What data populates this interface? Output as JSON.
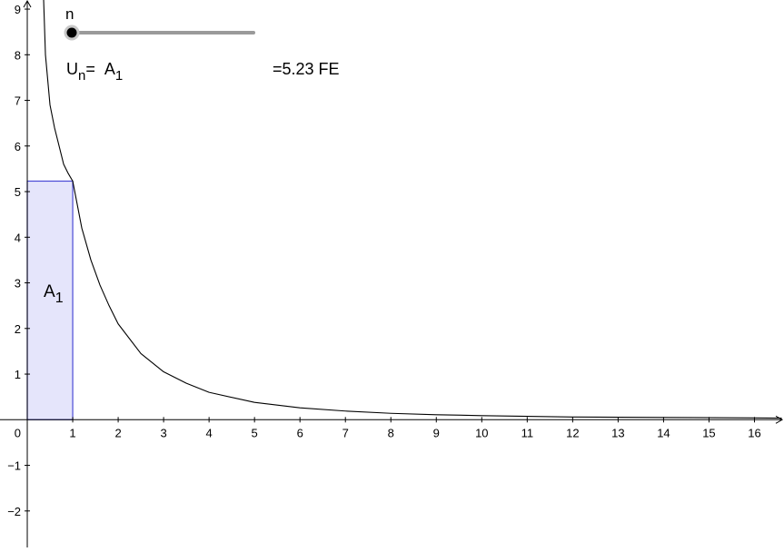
{
  "slider": {
    "name": "n",
    "min": 1,
    "max": 20,
    "value": 1,
    "color": "#9a9a9a",
    "knob_color": "#000000"
  },
  "formula": {
    "prefix": "U",
    "sub_n": "n",
    "equals": "=",
    "term": "A",
    "term_sub": "1"
  },
  "result": {
    "text": "=5.23 FE"
  },
  "rect_label": {
    "text": "A",
    "sub": "1"
  },
  "chart_data": {
    "type": "line",
    "function": "f(x) = 1/x^k",
    "series": [
      {
        "x": [
          0.36,
          0.4,
          0.5,
          0.6,
          0.7,
          0.8,
          0.9,
          1.0,
          1.2,
          1.4,
          1.6,
          1.8,
          2.0,
          2.5,
          3.0,
          3.5,
          4.0,
          5.0,
          6.0,
          7.0,
          8.0,
          9.0,
          10.0,
          12.0,
          14.0,
          16.0,
          16.6
        ],
        "y": [
          9.2,
          8.0,
          6.9,
          6.4,
          6.0,
          5.6,
          5.4,
          5.23,
          4.2,
          3.5,
          2.95,
          2.5,
          2.1,
          1.45,
          1.05,
          0.8,
          0.6,
          0.38,
          0.26,
          0.19,
          0.14,
          0.11,
          0.09,
          0.06,
          0.05,
          0.04,
          0.035
        ]
      }
    ],
    "rectangles": [
      {
        "x0": 0,
        "x1": 1,
        "height": 5.23,
        "fill": "#e5e5fb",
        "stroke": "#4a4ad6"
      }
    ],
    "xlim": [
      -0.6,
      16.65
    ],
    "ylim": [
      -2.8,
      9.2
    ],
    "x_ticks": [
      1,
      2,
      3,
      4,
      5,
      6,
      7,
      8,
      9,
      10,
      11,
      12,
      13,
      14,
      15,
      16
    ],
    "y_ticks": [
      -2,
      -1,
      1,
      2,
      3,
      4,
      5,
      6,
      7,
      8,
      9
    ],
    "x_tick_labels": [
      "1",
      "2",
      "3",
      "4",
      "5",
      "6",
      "7",
      "8",
      "9",
      "10",
      "11",
      "12",
      "13",
      "14",
      "15",
      "16"
    ],
    "y_tick_labels": [
      "−2",
      "−1",
      "1",
      "2",
      "3",
      "4",
      "5",
      "6",
      "7",
      "8",
      "9"
    ],
    "origin_label": "0",
    "grid": false,
    "curve_color": "#000000"
  }
}
